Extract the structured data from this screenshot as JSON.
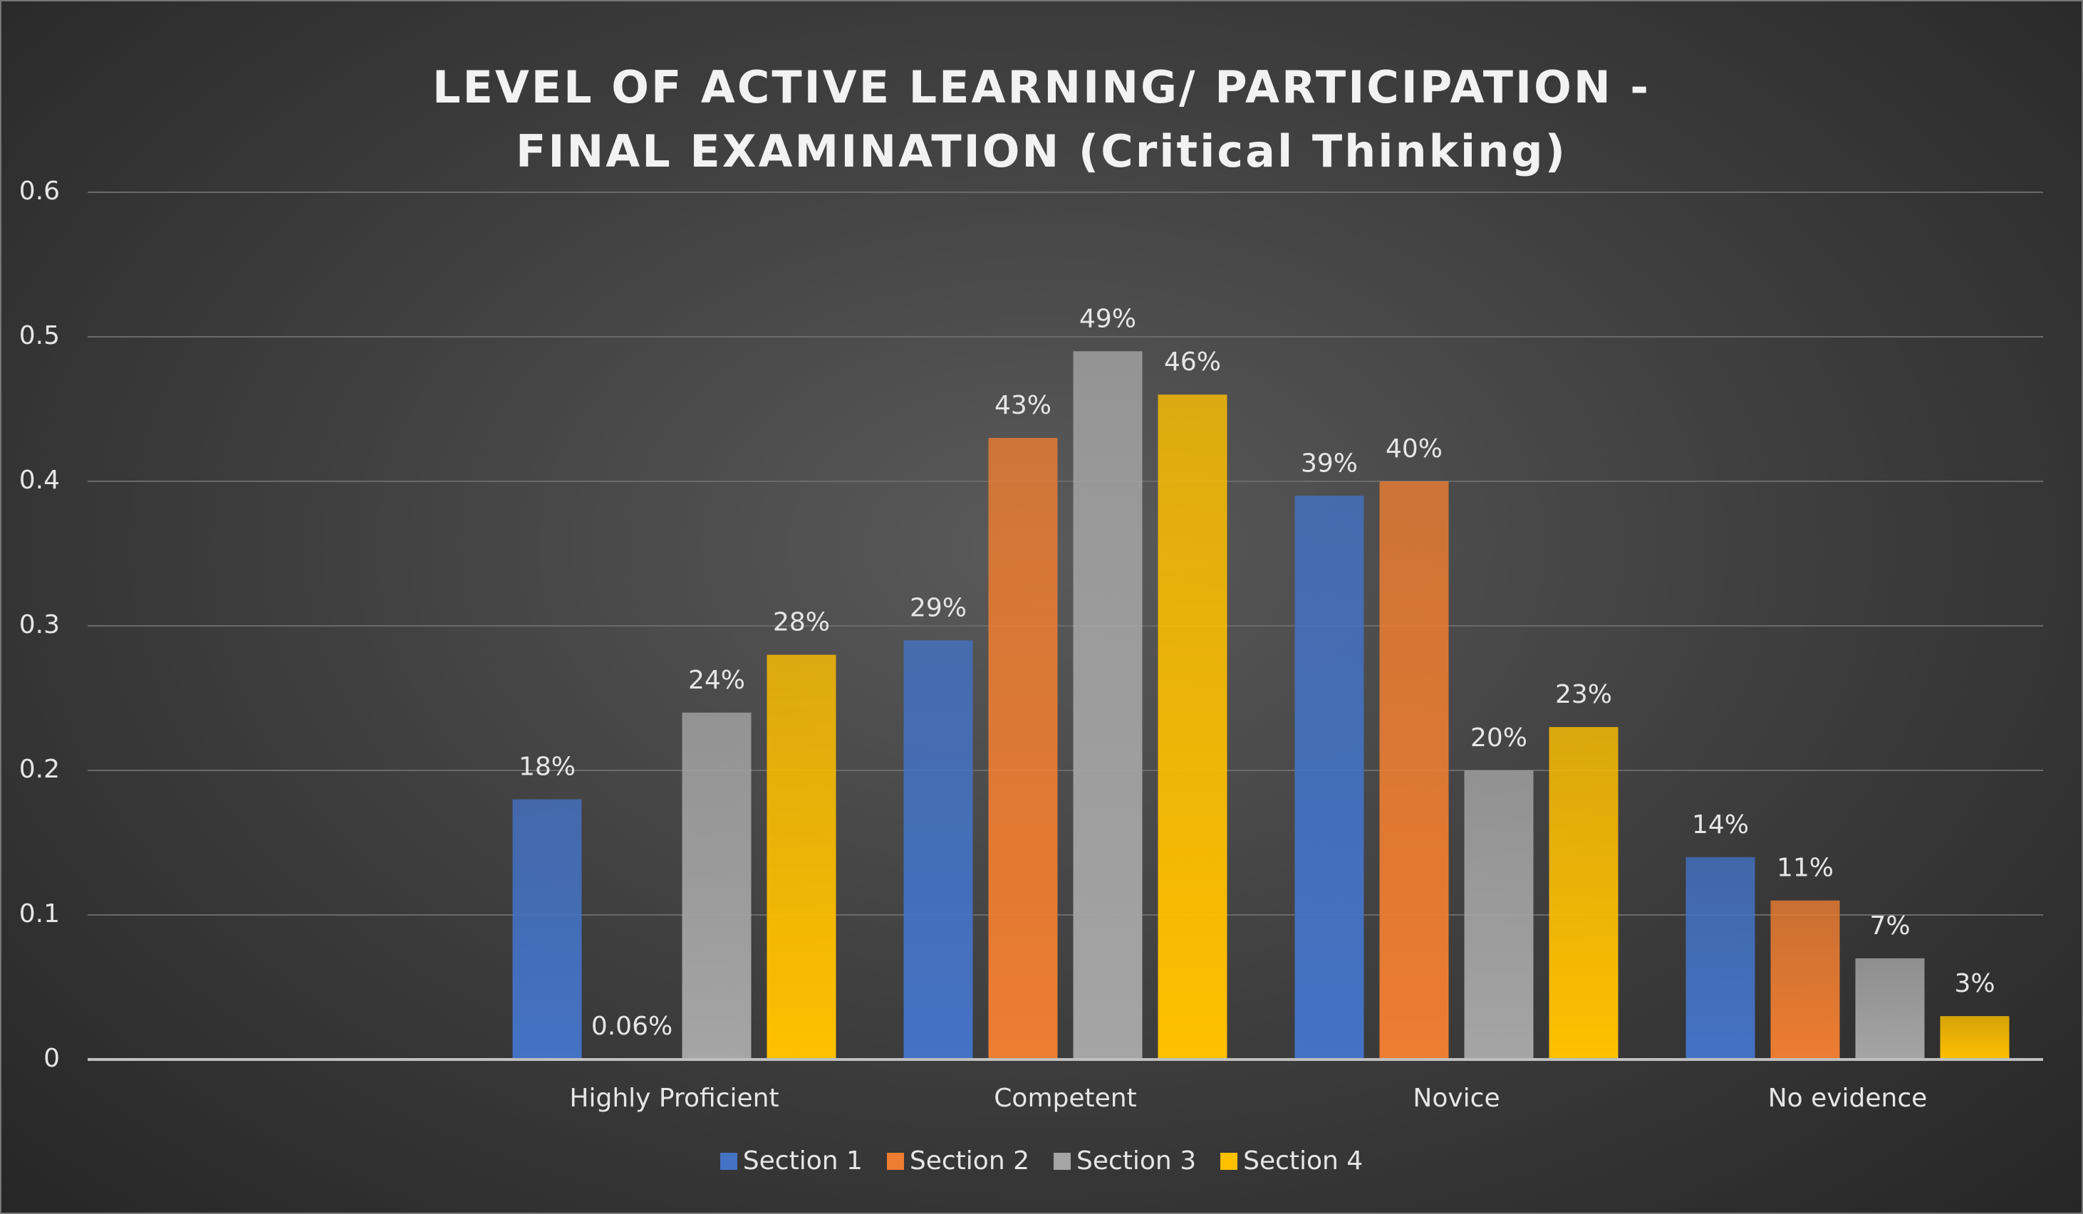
{
  "chart_data": {
    "type": "bar",
    "title": "LEVEL OF ACTIVE LEARNING/ PARTICIPATION - FINAL EXAMINATION (Critical Thinking)",
    "categories": [
      null,
      "Highly Proficient",
      "Competent",
      "Novice",
      "No evidence"
    ],
    "series": [
      {
        "name": "Section 1",
        "color": "#4472c4",
        "values": [
          null,
          0.18,
          0.29,
          0.39,
          0.14
        ],
        "value_labels": [
          null,
          "18%",
          "29%",
          "39%",
          "14%"
        ]
      },
      {
        "name": "Section 2",
        "color": "#ed7d31",
        "values": [
          null,
          0.0006,
          0.43,
          0.4,
          0.11
        ],
        "value_labels": [
          null,
          "0.06%",
          "43%",
          "40%",
          "11%"
        ]
      },
      {
        "name": "Section 3",
        "color": "#a5a5a5",
        "values": [
          null,
          0.24,
          0.49,
          0.2,
          0.07
        ],
        "value_labels": [
          null,
          "24%",
          "49%",
          "20%",
          "7%"
        ]
      },
      {
        "name": "Section 4",
        "color": "#ffc000",
        "values": [
          null,
          0.28,
          0.46,
          0.23,
          0.03
        ],
        "value_labels": [
          null,
          "28%",
          "46%",
          "23%",
          "3%"
        ]
      }
    ],
    "ylim": [
      0,
      0.6
    ],
    "yticks": [
      0,
      0.1,
      0.2,
      0.3,
      0.4,
      0.5,
      0.6
    ],
    "grid": true,
    "legend": "bottom"
  }
}
